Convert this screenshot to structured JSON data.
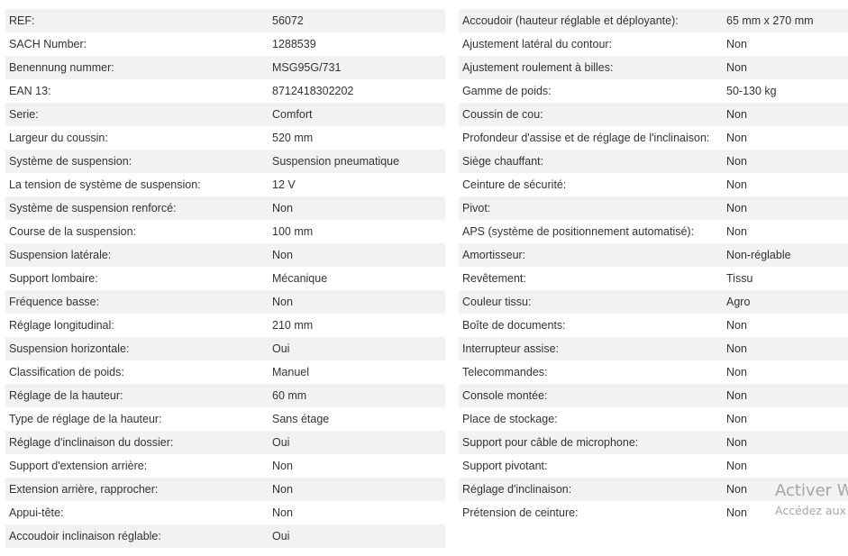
{
  "left_specs": [
    {
      "label": "REF:",
      "value": "56072"
    },
    {
      "label": "SACH Number:",
      "value": "1288539"
    },
    {
      "label": "Benennung nummer:",
      "value": "MSG95G/731"
    },
    {
      "label": "EAN 13:",
      "value": "8712418302202"
    },
    {
      "label": "Serie:",
      "value": "Comfort"
    },
    {
      "label": "Largeur du coussin:",
      "value": "520 mm"
    },
    {
      "label": "Système de suspension:",
      "value": "Suspension pneumatique"
    },
    {
      "label": "La tension de système de suspension:",
      "value": "12 V"
    },
    {
      "label": "Système de suspension renforcé:",
      "value": "Non"
    },
    {
      "label": "Course de la suspension:",
      "value": "100 mm"
    },
    {
      "label": "Suspension latérale:",
      "value": "Non"
    },
    {
      "label": "Support lombaire:",
      "value": "Mécanique"
    },
    {
      "label": "Fréquence basse:",
      "value": "Non"
    },
    {
      "label": "Réglage longitudinal:",
      "value": "210 mm"
    },
    {
      "label": "Suspension horizontale:",
      "value": "Oui"
    },
    {
      "label": "Classification de poids:",
      "value": "Manuel"
    },
    {
      "label": "Réglage de la hauteur:",
      "value": "60 mm"
    },
    {
      "label": "Type de réglage de la hauteur:",
      "value": "Sans étage"
    },
    {
      "label": "Réglage d'inclinaison du dossier:",
      "value": "Oui"
    },
    {
      "label": "Support d'extension arrière:",
      "value": "Non"
    },
    {
      "label": "Extension arrière, rapprocher:",
      "value": "Non"
    },
    {
      "label": "Appui-tête:",
      "value": "Non"
    },
    {
      "label": "Accoudoir inclinaison réglable:",
      "value": "Oui"
    }
  ],
  "right_specs": [
    {
      "label": "Accoudoir (hauteur réglable et déployante):",
      "value": "65 mm x 270 mm"
    },
    {
      "label": "Ajustement latéral du contour:",
      "value": "Non"
    },
    {
      "label": "Ajustement roulement à billes:",
      "value": "Non"
    },
    {
      "label": "Gamme de poids:",
      "value": "50-130 kg"
    },
    {
      "label": "Coussin de cou:",
      "value": "Non"
    },
    {
      "label": "Profondeur d'assise et de réglage de l'inclinaison:",
      "value": "Non"
    },
    {
      "label": "Siège chauffant:",
      "value": "Non"
    },
    {
      "label": "Ceinture de sécurité:",
      "value": "Non"
    },
    {
      "label": "Pivot:",
      "value": "Non"
    },
    {
      "label": "APS (système de positionnement automatisé):",
      "value": "Non"
    },
    {
      "label": "Amortisseur:",
      "value": "Non-réglable"
    },
    {
      "label": "Revêtement:",
      "value": "Tissu"
    },
    {
      "label": "Couleur tissu:",
      "value": "Agro"
    },
    {
      "label": "Boîte de documents:",
      "value": "Non"
    },
    {
      "label": "Interrupteur assise:",
      "value": "Non"
    },
    {
      "label": "Telecommandes:",
      "value": "Non"
    },
    {
      "label": "Console montée:",
      "value": "Non"
    },
    {
      "label": "Place de stockage:",
      "value": "Non"
    },
    {
      "label": "Support pour câble de microphone:",
      "value": "Non"
    },
    {
      "label": "Support pivotant:",
      "value": "Non"
    },
    {
      "label": "Réglage d'inclinaison:",
      "value": "Non"
    },
    {
      "label": "Prétension de ceinture:",
      "value": "Non"
    }
  ],
  "watermark": {
    "line1": "Activer W",
    "line2": "Accédez aux"
  },
  "colors": {
    "row_shade": "#f2f2f2",
    "text": "#333333",
    "watermark": "#a6a6a6"
  }
}
